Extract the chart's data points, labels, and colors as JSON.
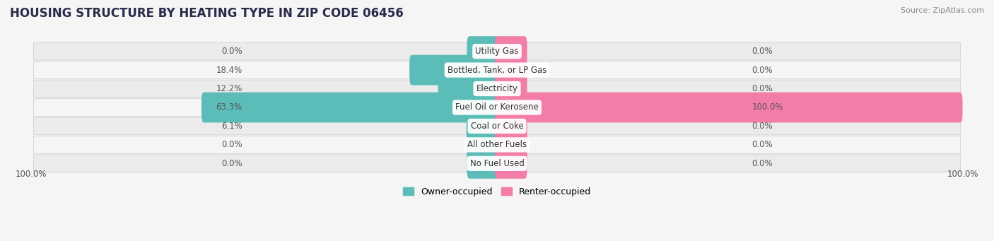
{
  "title": "HOUSING STRUCTURE BY HEATING TYPE IN ZIP CODE 06456",
  "source": "Source: ZipAtlas.com",
  "categories": [
    "Utility Gas",
    "Bottled, Tank, or LP Gas",
    "Electricity",
    "Fuel Oil or Kerosene",
    "Coal or Coke",
    "All other Fuels",
    "No Fuel Used"
  ],
  "owner_values": [
    0.0,
    18.4,
    12.2,
    63.3,
    6.1,
    0.0,
    0.0
  ],
  "renter_values": [
    0.0,
    0.0,
    0.0,
    100.0,
    0.0,
    0.0,
    0.0
  ],
  "owner_color": "#5bbcb8",
  "renter_color": "#f27da8",
  "row_bg_odd": "#ebebeb",
  "row_bg_even": "#f5f5f5",
  "fig_bg": "#f5f5f5",
  "bar_height": 0.62,
  "label_value_left": "100.0%",
  "label_value_right": "100.0%",
  "title_fontsize": 12,
  "source_fontsize": 8,
  "bar_label_fontsize": 8.5,
  "value_label_fontsize": 8.5,
  "legend_fontsize": 9
}
